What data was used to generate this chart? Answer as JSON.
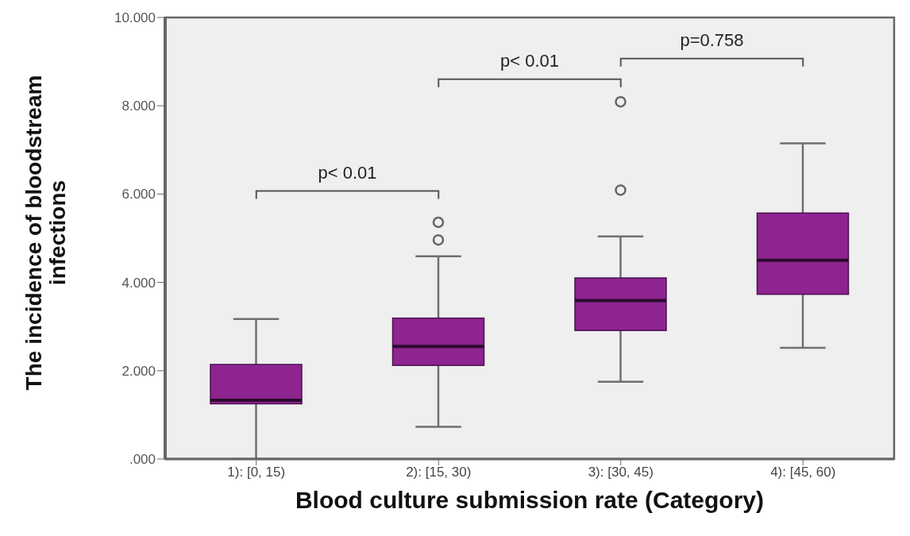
{
  "chart_data": {
    "type": "box",
    "xlabel": "Blood culture submission rate (Category)",
    "ylabel": "The incidence of bloodstream infections",
    "categories": [
      "1): [0, 15)",
      "2): [15, 30)",
      "3): [30, 45)",
      "4): [45, 60)"
    ],
    "color": "#8e2490",
    "boxes": [
      {
        "low": 0,
        "q1": 1.25,
        "median": 1.33,
        "q3": 2.14,
        "high": 3.17
      },
      {
        "low": 0.73,
        "q1": 2.12,
        "median": 2.55,
        "q3": 3.19,
        "high": 4.59,
        "outliers": [
          4.96,
          5.36
        ]
      },
      {
        "low": 1.75,
        "q1": 2.91,
        "median": 3.59,
        "q3": 4.1,
        "high": 5.04,
        "outliers": [
          6.09,
          8.09
        ]
      },
      {
        "low": 2.52,
        "q1": 3.73,
        "median": 4.5,
        "q3": 5.57,
        "high": 7.15
      }
    ],
    "ylim": [
      0,
      10
    ],
    "yticks": [
      {
        "value": 0,
        "label": ".000"
      },
      {
        "value": 2,
        "label": "2.000"
      },
      {
        "value": 4,
        "label": "4.000"
      },
      {
        "value": 6,
        "label": "6.000"
      },
      {
        "value": 8,
        "label": "8.000"
      },
      {
        "value": 10,
        "label": "10.000"
      }
    ],
    "annotations": [
      "p< 0.01",
      "p< 0.01",
      "p=0.758"
    ]
  }
}
